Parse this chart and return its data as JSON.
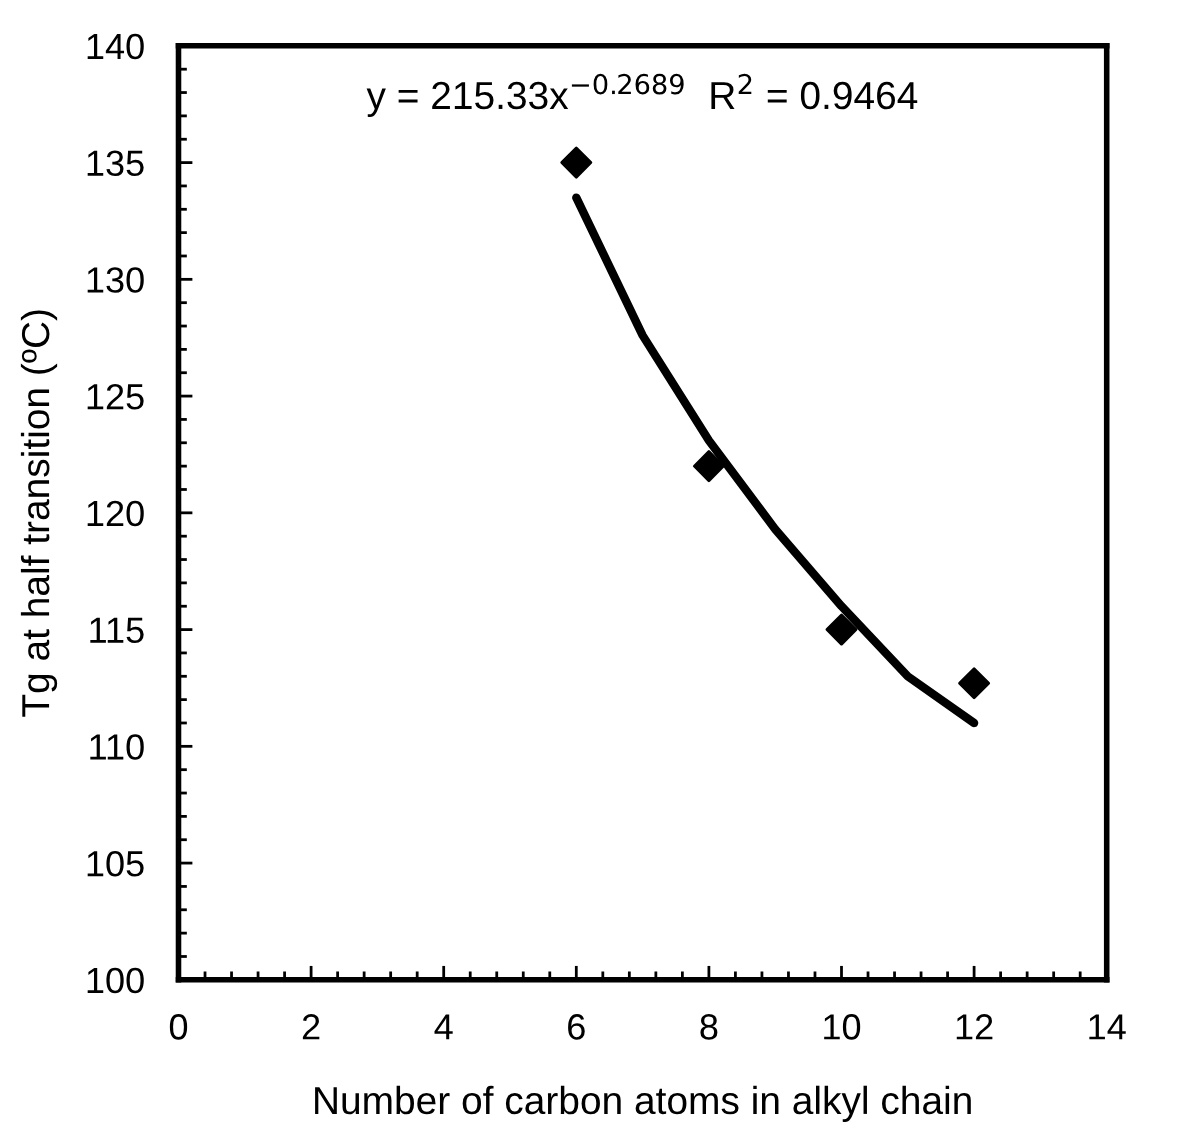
{
  "chart_data": {
    "type": "scatter",
    "xlabel": "Number of carbon atoms in alkyl chain",
    "ylabel": "Tg at half transition (ºC)",
    "annotations": [
      "y = 215.33x$^{−0.2689}$  R$^{2}$ = 0.9464"
    ],
    "x": [
      6,
      8,
      10,
      12
    ],
    "series": [
      {
        "color": "#000000",
        "marker": "diamond",
        "values": [
          135,
          122,
          115,
          112.7
        ]
      },
      {
        "type": "line",
        "color": "#000000",
        "marker": "none",
        "line_style": "solid",
        "x": [
          6,
          7,
          8,
          9,
          10,
          11,
          12
        ],
        "values": [
          133.5,
          127.6,
          123.1,
          119.3,
          116,
          113,
          111
        ]
      }
    ],
    "xlim": [
      0,
      14
    ],
    "ylim": [
      100,
      140
    ],
    "xticks": [
      0,
      2,
      4,
      6,
      8,
      10,
      12,
      14
    ],
    "yticks": [
      100,
      105,
      110,
      115,
      120,
      125,
      130,
      135,
      140
    ],
    "grid": false,
    "legend": false
  }
}
